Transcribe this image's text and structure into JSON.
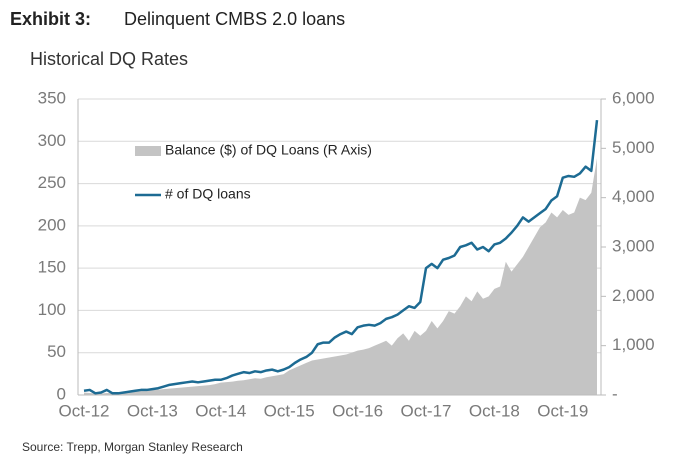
{
  "chart_data": {
    "type": "line",
    "title_label": "Exhibit 3:",
    "title": "Delinquent CMBS 2.0 loans",
    "subtitle": "Historical DQ Rates",
    "source": "Source: Trepp, Morgan Stanley Research",
    "categories": [
      "Oct-12",
      null,
      null,
      null,
      null,
      null,
      null,
      null,
      null,
      null,
      null,
      null,
      "Oct-13",
      null,
      null,
      null,
      null,
      null,
      null,
      null,
      null,
      null,
      null,
      null,
      "Oct-14",
      null,
      null,
      null,
      null,
      null,
      null,
      null,
      null,
      null,
      null,
      null,
      "Oct-15",
      null,
      null,
      null,
      null,
      null,
      null,
      null,
      null,
      null,
      null,
      null,
      "Oct-16",
      null,
      null,
      null,
      null,
      null,
      null,
      null,
      null,
      null,
      null,
      null,
      "Oct-17",
      null,
      null,
      null,
      null,
      null,
      null,
      null,
      null,
      null,
      null,
      null,
      "Oct-18",
      null,
      null,
      null,
      null,
      null,
      null,
      null,
      null,
      null,
      null,
      null,
      "Oct-19",
      null,
      null,
      null,
      null,
      null,
      null
    ],
    "series": [
      {
        "name": "Balance ($) of DQ Loans (R Axis)",
        "type": "area",
        "axis": "y2",
        "color": "#c4c4c4",
        "values": [
          50,
          40,
          30,
          30,
          40,
          40,
          50,
          60,
          60,
          70,
          80,
          90,
          100,
          110,
          120,
          130,
          140,
          150,
          160,
          170,
          180,
          190,
          200,
          220,
          250,
          260,
          270,
          290,
          300,
          320,
          340,
          330,
          360,
          380,
          400,
          420,
          500,
          550,
          600,
          650,
          700,
          720,
          740,
          760,
          780,
          800,
          820,
          860,
          900,
          920,
          950,
          1000,
          1050,
          1100,
          1000,
          1150,
          1250,
          1100,
          1300,
          1200,
          1300,
          1500,
          1350,
          1500,
          1700,
          1650,
          1800,
          2000,
          1900,
          2100,
          1950,
          2000,
          2150,
          2200,
          2700,
          2500,
          2650,
          2800,
          3000,
          3200,
          3400,
          3500,
          3700,
          3600,
          3750,
          3650,
          3700,
          4000,
          3950,
          4100,
          4800
        ]
      },
      {
        "name": "# of DQ loans",
        "type": "line",
        "axis": "y",
        "color": "#1d6b93",
        "values": [
          5,
          6,
          2,
          3,
          6,
          2,
          2,
          3,
          4,
          5,
          6,
          6,
          7,
          8,
          10,
          12,
          13,
          14,
          15,
          16,
          15,
          16,
          17,
          18,
          18,
          20,
          23,
          25,
          27,
          26,
          28,
          27,
          29,
          30,
          28,
          30,
          33,
          38,
          42,
          45,
          50,
          60,
          62,
          62,
          68,
          72,
          75,
          72,
          80,
          82,
          83,
          82,
          85,
          90,
          92,
          95,
          100,
          105,
          103,
          110,
          150,
          155,
          150,
          160,
          162,
          165,
          175,
          177,
          180,
          172,
          175,
          170,
          178,
          180,
          185,
          192,
          200,
          210,
          205,
          210,
          215,
          220,
          230,
          235,
          257,
          259,
          258,
          262,
          270,
          265,
          325
        ]
      }
    ],
    "ylim": [
      0,
      350
    ],
    "yticks": [
      0,
      50,
      100,
      150,
      200,
      250,
      300,
      350
    ],
    "y2lim": [
      0,
      6000
    ],
    "y2ticks": [
      {
        "value": 0,
        "label": "-"
      },
      {
        "value": 1000,
        "label": "1,000"
      },
      {
        "value": 2000,
        "label": "2,000"
      },
      {
        "value": 3000,
        "label": "3,000"
      },
      {
        "value": 4000,
        "label": "4,000"
      },
      {
        "value": 5000,
        "label": "5,000"
      },
      {
        "value": 6000,
        "label": "6,000"
      }
    ],
    "grid": true
  }
}
